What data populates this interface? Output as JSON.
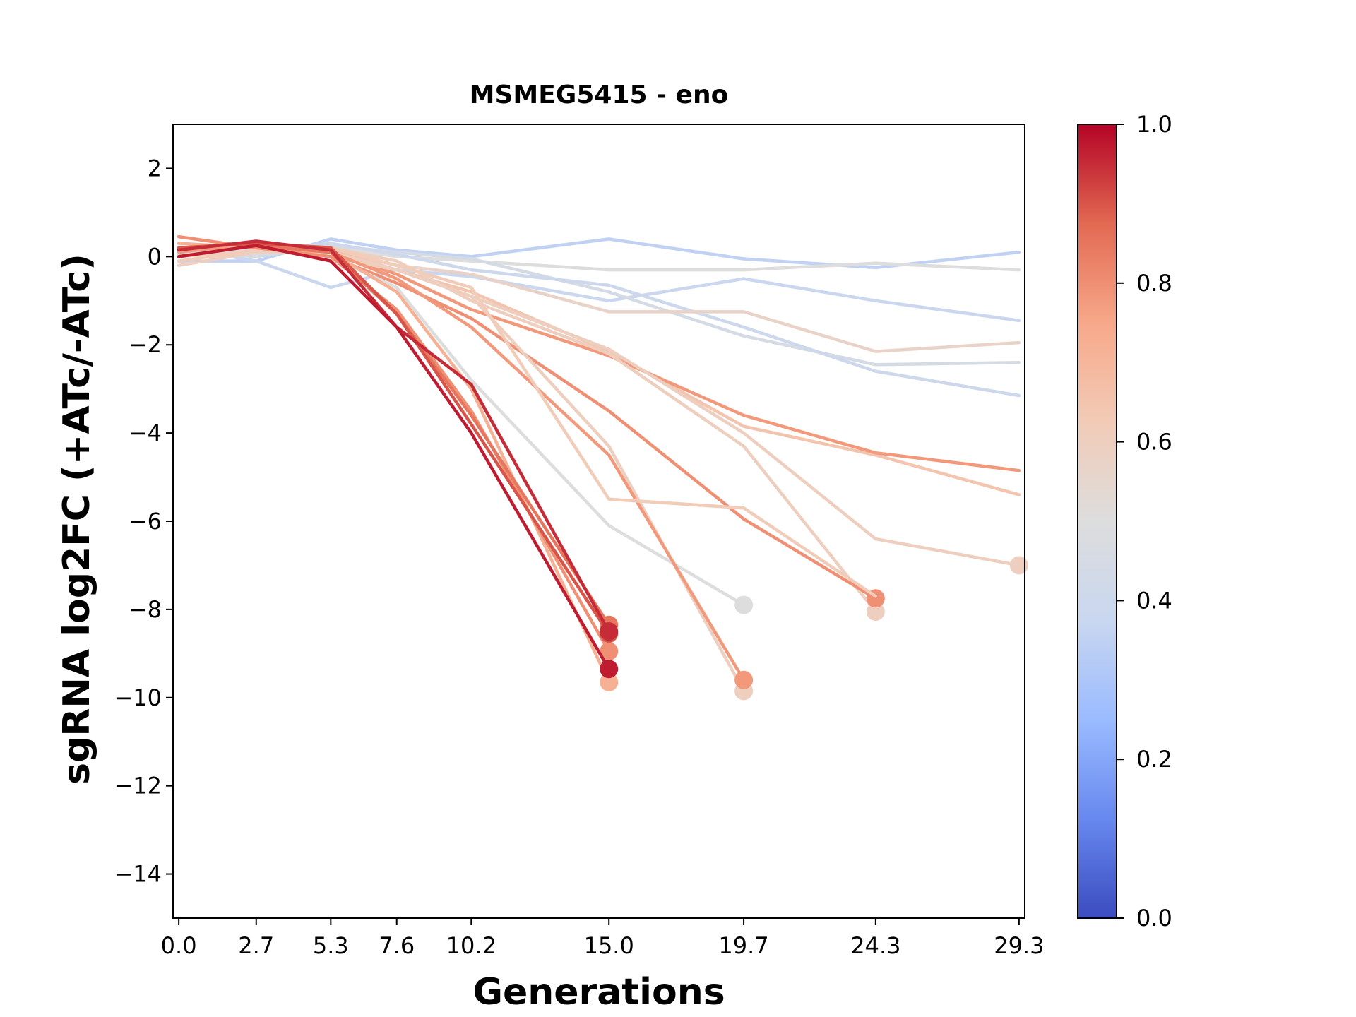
{
  "chart_data": {
    "type": "line",
    "title": "MSMEG5415 - eno",
    "xlabel": "Generations",
    "ylabel": "sgRNA log2FC (+ATc/-ATc)",
    "x_ticks": [
      0.0,
      2.7,
      5.3,
      7.6,
      10.2,
      15.0,
      19.7,
      24.3,
      29.3
    ],
    "x_tick_labels": [
      "0.0",
      "2.7",
      "5.3",
      "7.6",
      "10.2",
      "15.0",
      "19.7",
      "24.3",
      "29.3"
    ],
    "xlim": [
      -0.2,
      29.5
    ],
    "y_ticks": [
      2,
      0,
      -2,
      -4,
      -6,
      -8,
      -10,
      -12,
      -14
    ],
    "y_tick_labels": [
      "2",
      "0",
      "−2",
      "−4",
      "−6",
      "−8",
      "−10",
      "−12",
      "−14"
    ],
    "ylim": [
      -15,
      3
    ],
    "colorbar": {
      "colormap": "coolwarm",
      "range": [
        0,
        1
      ],
      "ticks": [
        0.0,
        0.2,
        0.4,
        0.6,
        0.8,
        1.0
      ],
      "tick_labels": [
        "0.0",
        "0.2",
        "0.4",
        "0.6",
        "0.8",
        "1.0"
      ],
      "stops": [
        "#3b4cc0",
        "#6788ee",
        "#9abbff",
        "#c9d7f0",
        "#dddddd",
        "#f2cbb7",
        "#f7a889",
        "#e26952",
        "#b40426"
      ]
    },
    "series": [
      {
        "color_value": 0.35,
        "points": [
          [
            0.0,
            -0.1
          ],
          [
            2.7,
            -0.1
          ],
          [
            5.3,
            0.4
          ],
          [
            7.6,
            0.15
          ],
          [
            10.2,
            0.0
          ],
          [
            15.0,
            0.4
          ],
          [
            19.7,
            -0.05
          ],
          [
            24.3,
            -0.25
          ],
          [
            29.3,
            0.1
          ]
        ],
        "end_marker": false
      },
      {
        "color_value": 0.5,
        "points": [
          [
            0.0,
            0.05
          ],
          [
            2.7,
            0.05
          ],
          [
            5.3,
            0.2
          ],
          [
            7.6,
            0.0
          ],
          [
            10.2,
            -0.1
          ],
          [
            15.0,
            -0.3
          ],
          [
            19.7,
            -0.3
          ],
          [
            24.3,
            -0.15
          ],
          [
            29.3,
            -0.3
          ]
        ],
        "end_marker": false
      },
      {
        "color_value": 0.38,
        "points": [
          [
            0.0,
            0.2
          ],
          [
            2.7,
            -0.1
          ],
          [
            5.3,
            -0.7
          ],
          [
            7.6,
            -0.3
          ],
          [
            10.2,
            -0.45
          ],
          [
            15.0,
            -1.0
          ],
          [
            19.7,
            -0.5
          ],
          [
            24.3,
            -1.0
          ],
          [
            29.3,
            -1.45
          ]
        ],
        "end_marker": false
      },
      {
        "color_value": 0.45,
        "points": [
          [
            0.0,
            0.1
          ],
          [
            2.7,
            0.0
          ],
          [
            5.3,
            0.25
          ],
          [
            7.6,
            0.1
          ],
          [
            10.2,
            -0.05
          ],
          [
            15.0,
            -0.8
          ],
          [
            19.7,
            -1.8
          ],
          [
            24.3,
            -2.45
          ],
          [
            29.3,
            -2.4
          ]
        ],
        "end_marker": false
      },
      {
        "color_value": 0.4,
        "points": [
          [
            0.0,
            0.15
          ],
          [
            2.7,
            0.1
          ],
          [
            5.3,
            0.3
          ],
          [
            7.6,
            0.05
          ],
          [
            10.2,
            -0.3
          ],
          [
            15.0,
            -0.65
          ],
          [
            19.7,
            -1.6
          ],
          [
            24.3,
            -2.6
          ],
          [
            29.3,
            -3.15
          ]
        ],
        "end_marker": false
      },
      {
        "color_value": 0.57,
        "points": [
          [
            0.0,
            0.2
          ],
          [
            2.7,
            0.1
          ],
          [
            5.3,
            0.15
          ],
          [
            7.6,
            -0.2
          ],
          [
            10.2,
            -0.4
          ],
          [
            15.0,
            -1.25
          ],
          [
            19.7,
            -1.25
          ],
          [
            24.3,
            -2.15
          ],
          [
            29.3,
            -1.95
          ]
        ],
        "end_marker": false
      },
      {
        "color_value": 0.65,
        "points": [
          [
            0.0,
            0.1
          ],
          [
            2.7,
            0.2
          ],
          [
            5.3,
            0.15
          ],
          [
            7.6,
            -0.3
          ],
          [
            10.2,
            -0.8
          ],
          [
            15.0,
            -2.15
          ],
          [
            19.7,
            -3.85
          ],
          [
            24.3,
            -4.5
          ],
          [
            29.3,
            -5.4
          ]
        ],
        "end_marker": false
      },
      {
        "color_value": 0.78,
        "points": [
          [
            0.0,
            0.0
          ],
          [
            2.7,
            0.2
          ],
          [
            5.3,
            0.1
          ],
          [
            7.6,
            -0.4
          ],
          [
            10.2,
            -1.2
          ],
          [
            15.0,
            -2.25
          ],
          [
            19.7,
            -3.6
          ],
          [
            24.3,
            -4.45
          ],
          [
            29.3,
            -4.85
          ]
        ],
        "end_marker": false
      },
      {
        "color_value": 0.6,
        "points": [
          [
            0.0,
            0.0
          ],
          [
            2.7,
            0.15
          ],
          [
            5.3,
            0.0
          ],
          [
            7.6,
            -0.3
          ],
          [
            10.2,
            -0.9
          ],
          [
            15.0,
            -2.1
          ],
          [
            19.7,
            -4.0
          ],
          [
            24.3,
            -6.4
          ],
          [
            29.3,
            -7.0
          ]
        ],
        "end_marker": true
      },
      {
        "color_value": 0.6,
        "points": [
          [
            0.0,
            0.1
          ],
          [
            2.7,
            0.15
          ],
          [
            5.3,
            0.2
          ],
          [
            7.6,
            -0.1
          ],
          [
            10.2,
            -1.0
          ],
          [
            15.0,
            -2.2
          ],
          [
            19.7,
            -4.3
          ],
          [
            24.3,
            -8.05
          ]
        ],
        "end_marker": true
      },
      {
        "color_value": 0.8,
        "points": [
          [
            0.0,
            0.0
          ],
          [
            2.7,
            0.25
          ],
          [
            5.3,
            0.0
          ],
          [
            7.6,
            -0.6
          ],
          [
            10.2,
            -1.4
          ],
          [
            15.0,
            -3.5
          ],
          [
            19.7,
            -5.95
          ],
          [
            24.3,
            -7.75
          ]
        ],
        "end_marker": true
      },
      {
        "color_value": 0.5,
        "points": [
          [
            0.0,
            0.05
          ],
          [
            2.7,
            0.2
          ],
          [
            5.3,
            0.0
          ],
          [
            7.6,
            -0.7
          ],
          [
            10.2,
            -2.8
          ],
          [
            15.0,
            -6.1
          ],
          [
            19.7,
            -7.9
          ]
        ],
        "end_marker": true
      },
      {
        "color_value": 0.6,
        "points": [
          [
            0.0,
            -0.2
          ],
          [
            2.7,
            0.1
          ],
          [
            5.3,
            0.1
          ],
          [
            7.6,
            -0.3
          ],
          [
            10.2,
            -0.9
          ],
          [
            15.0,
            -4.3
          ],
          [
            19.7,
            -9.85
          ]
        ],
        "end_marker": true
      },
      {
        "color_value": 0.78,
        "points": [
          [
            0.0,
            0.1
          ],
          [
            2.7,
            0.3
          ],
          [
            5.3,
            0.1
          ],
          [
            7.6,
            -0.5
          ],
          [
            10.2,
            -1.6
          ],
          [
            15.0,
            -4.5
          ],
          [
            19.7,
            -9.6
          ]
        ],
        "end_marker": true
      },
      {
        "color_value": 0.62,
        "points": [
          [
            0.0,
            -0.1
          ],
          [
            2.7,
            0.15
          ],
          [
            5.3,
            0.2
          ],
          [
            7.6,
            -0.2
          ],
          [
            10.2,
            -0.7
          ],
          [
            15.0,
            -5.5
          ],
          [
            19.7,
            -5.7
          ],
          [
            24.3,
            -7.7
          ]
        ],
        "end_marker": false
      },
      {
        "color_value": 0.72,
        "points": [
          [
            0.0,
            0.3
          ],
          [
            2.7,
            0.2
          ],
          [
            5.3,
            0.1
          ],
          [
            7.6,
            -0.8
          ],
          [
            10.2,
            -3.0
          ],
          [
            15.0,
            -9.65
          ]
        ],
        "end_marker": true
      },
      {
        "color_value": 0.8,
        "points": [
          [
            0.0,
            0.45
          ],
          [
            2.7,
            0.2
          ],
          [
            5.3,
            0.0
          ],
          [
            7.6,
            -1.2
          ],
          [
            10.2,
            -3.5
          ],
          [
            15.0,
            -8.95
          ]
        ],
        "end_marker": true
      },
      {
        "color_value": 0.85,
        "points": [
          [
            0.0,
            0.0
          ],
          [
            2.7,
            0.25
          ],
          [
            5.3,
            0.1
          ],
          [
            7.6,
            -1.3
          ],
          [
            10.2,
            -3.6
          ],
          [
            15.0,
            -8.35
          ]
        ],
        "end_marker": true
      },
      {
        "color_value": 0.9,
        "points": [
          [
            0.0,
            0.2
          ],
          [
            2.7,
            0.3
          ],
          [
            5.3,
            0.2
          ],
          [
            7.6,
            -1.3
          ],
          [
            10.2,
            -3.8
          ],
          [
            15.0,
            -8.55
          ]
        ],
        "end_marker": true
      },
      {
        "color_value": 0.95,
        "points": [
          [
            0.0,
            0.15
          ],
          [
            2.7,
            0.35
          ],
          [
            5.3,
            0.15
          ],
          [
            7.6,
            -1.6
          ],
          [
            10.2,
            -2.9
          ],
          [
            15.0,
            -8.5
          ]
        ],
        "end_marker": true
      },
      {
        "color_value": 0.97,
        "points": [
          [
            0.0,
            0.0
          ],
          [
            2.7,
            0.25
          ],
          [
            5.3,
            -0.1
          ],
          [
            7.6,
            -1.6
          ],
          [
            10.2,
            -4.0
          ],
          [
            15.0,
            -9.35
          ]
        ],
        "end_marker": true
      }
    ]
  }
}
